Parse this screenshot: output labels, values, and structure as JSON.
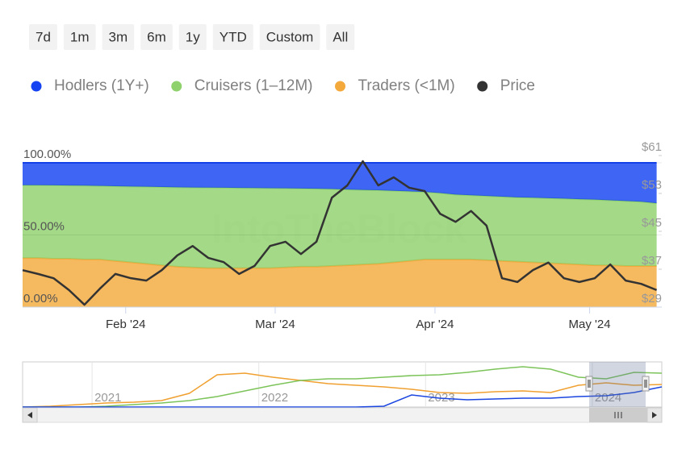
{
  "range_buttons": [
    "7d",
    "1m",
    "3m",
    "6m",
    "1y",
    "YTD",
    "Custom",
    "All"
  ],
  "watermark": "IntoTheBlock",
  "chart_data": [
    {
      "type": "area",
      "stacked": true,
      "grid": true,
      "x": [
        0,
        3,
        6,
        9,
        12,
        15,
        18,
        21,
        24,
        27,
        30,
        33,
        36,
        39,
        42,
        45,
        48,
        51,
        54,
        57,
        60,
        63,
        66,
        69,
        72,
        75,
        78,
        81,
        84,
        87,
        90,
        93,
        96,
        99,
        102,
        105,
        108,
        111,
        114,
        117,
        120,
        123
      ],
      "xlim": [
        0,
        124
      ],
      "xticks": [
        {
          "value": 20,
          "label": "Feb '24"
        },
        {
          "value": 49,
          "label": "Mar '24"
        },
        {
          "value": 80,
          "label": "Apr '24"
        },
        {
          "value": 110,
          "label": "May '24"
        }
      ],
      "ylim": [
        0,
        105
      ],
      "yticks": [
        {
          "value": 0,
          "label": "0.00%"
        },
        {
          "value": 50,
          "label": "50.00%"
        },
        {
          "value": 100,
          "label": "100.00%"
        }
      ],
      "y2lim": [
        29,
        61
      ],
      "y2ticks": [
        {
          "value": 29,
          "label": "$29"
        },
        {
          "value": 37,
          "label": "$37"
        },
        {
          "value": 45,
          "label": "$45"
        },
        {
          "value": 53,
          "label": "$53"
        },
        {
          "value": 61,
          "label": "$61"
        }
      ],
      "series": [
        {
          "name": "Hodlers (1Y+)",
          "type": "area",
          "color": "#1543f2",
          "values": [
            15.5,
            15.5,
            15.6,
            15.7,
            15.8,
            16,
            16.2,
            16.4,
            16.6,
            16.8,
            17,
            17.1,
            17.2,
            17.3,
            17.4,
            17.5,
            17.6,
            17.7,
            17.8,
            18,
            18.2,
            18.5,
            18.8,
            19,
            19.4,
            19.8,
            20.2,
            21,
            22,
            22.5,
            23,
            23.5,
            24,
            24.2,
            24.5,
            24.8,
            25.2,
            25.5,
            26,
            26.5,
            27,
            28
          ]
        },
        {
          "name": "Cruisers (1–12M)",
          "type": "area",
          "color": "#8fd16c",
          "values": [
            50.5,
            50.5,
            50.9,
            50.8,
            51.2,
            51,
            51.8,
            52.6,
            53.4,
            54.2,
            55,
            55.4,
            55.8,
            55.7,
            55.6,
            55.5,
            55.4,
            54.8,
            54.2,
            54,
            53.3,
            52.5,
            51.7,
            51,
            49.6,
            48.2,
            46.8,
            46,
            45,
            44.5,
            44.5,
            44.5,
            44.5,
            44.8,
            45,
            45.2,
            45.3,
            45.5,
            45,
            45,
            44.5,
            43.5
          ]
        },
        {
          "name": "Traders (<1M)",
          "type": "area",
          "color": "#f3a93c",
          "values": [
            34,
            34,
            33.5,
            33.5,
            33,
            33,
            32,
            31,
            30,
            29,
            28,
            27.5,
            27,
            27,
            27,
            27,
            27,
            27.5,
            28,
            28,
            28.5,
            29,
            29.5,
            30,
            31,
            32,
            33,
            33,
            33,
            33,
            32.5,
            32,
            31.5,
            31,
            30.5,
            30,
            29.5,
            29,
            29,
            28.5,
            28.5,
            28.5
          ]
        },
        {
          "name": "Price",
          "type": "line",
          "axis": "y2",
          "color": "#333333",
          "values": [
            36.8,
            36.0,
            35.1,
            32.6,
            29.5,
            32.9,
            36.0,
            35.1,
            34.6,
            36.8,
            39.9,
            41.9,
            39.4,
            38.5,
            36.0,
            37.7,
            41.9,
            42.8,
            40.2,
            42.8,
            52.1,
            54.7,
            59.8,
            54.7,
            56.4,
            54.2,
            53.5,
            48.7,
            47.0,
            49.3,
            46.2,
            35.1,
            34.3,
            36.8,
            38.4,
            35.1,
            34.3,
            35.1,
            38.0,
            34.6,
            33.9,
            32.6
          ]
        }
      ]
    },
    {
      "type": "line",
      "x": [
        0,
        2,
        4,
        6,
        8,
        10,
        12,
        14,
        16,
        18,
        20,
        22,
        24,
        26,
        28,
        30,
        32,
        34,
        36,
        38,
        40,
        42,
        44,
        46
      ],
      "xlim": [
        0,
        46
      ],
      "xticks": [
        {
          "value": 5,
          "label": "2021"
        },
        {
          "value": 17,
          "label": "2022"
        },
        {
          "value": 29,
          "label": "2023"
        },
        {
          "value": 41,
          "label": "2024"
        }
      ],
      "ylim": [
        0,
        100
      ],
      "series": [
        {
          "color": "#f0a030",
          "values": [
            0,
            2,
            6,
            10,
            12,
            16,
            34,
            80,
            84,
            74,
            66,
            58,
            54,
            50,
            44,
            36,
            34,
            38,
            40,
            36,
            54,
            60,
            54,
            56
          ]
        },
        {
          "color": "#7cc45a",
          "values": [
            0,
            0,
            0,
            2,
            6,
            10,
            16,
            26,
            40,
            54,
            66,
            70,
            70,
            74,
            78,
            80,
            86,
            94,
            100,
            94,
            74,
            70,
            86,
            84
          ]
        },
        {
          "color": "#1a45e0",
          "values": [
            0,
            0,
            0,
            0,
            0,
            0,
            0,
            0,
            0,
            0,
            0,
            0,
            0,
            2,
            30,
            22,
            18,
            20,
            22,
            22,
            26,
            28,
            36,
            50
          ]
        }
      ]
    }
  ]
}
